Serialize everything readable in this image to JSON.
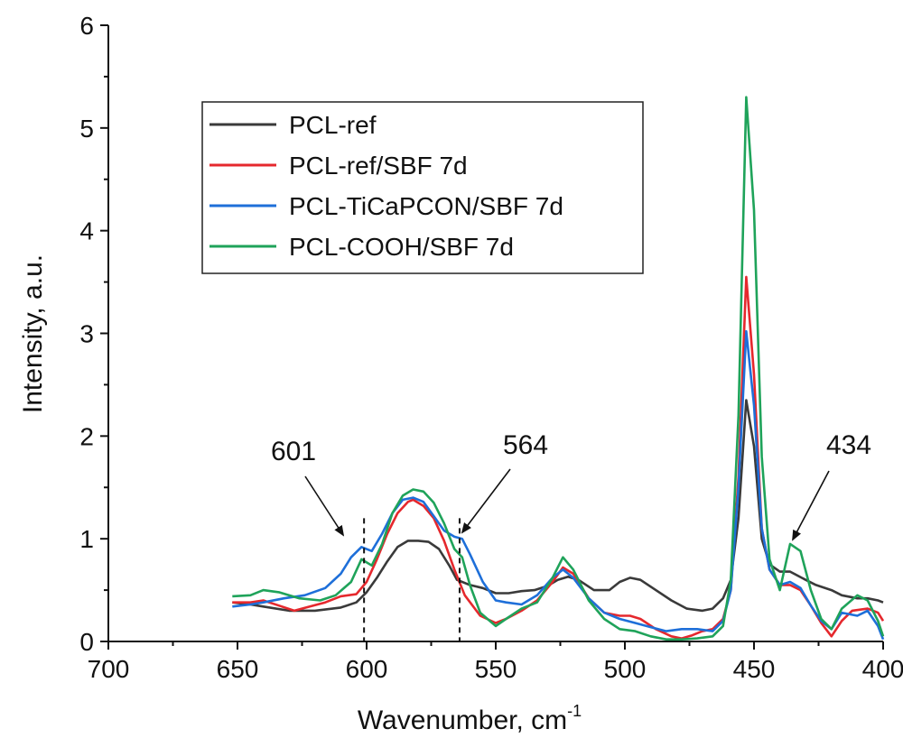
{
  "chart_data": {
    "type": "line",
    "xlabel": "Wavenumber, cm",
    "xlabel_superscript": "-1",
    "ylabel": "Intensity, a.u.",
    "xlim": [
      700,
      400
    ],
    "ylim": [
      0,
      6
    ],
    "x_reversed": true,
    "x_ticks": [
      700,
      650,
      600,
      550,
      500,
      450,
      400
    ],
    "y_ticks": [
      0,
      1,
      2,
      3,
      4,
      5,
      6
    ],
    "grid": false,
    "legend_position": "top-left",
    "series": [
      {
        "name": "PCL-ref",
        "color": "#3a3a3a",
        "points": [
          [
            652,
            0.38
          ],
          [
            645,
            0.36
          ],
          [
            640,
            0.34
          ],
          [
            630,
            0.3
          ],
          [
            620,
            0.3
          ],
          [
            610,
            0.33
          ],
          [
            604,
            0.38
          ],
          [
            600,
            0.48
          ],
          [
            596,
            0.62
          ],
          [
            592,
            0.78
          ],
          [
            588,
            0.92
          ],
          [
            584,
            0.98
          ],
          [
            580,
            0.98
          ],
          [
            576,
            0.97
          ],
          [
            572,
            0.9
          ],
          [
            568,
            0.74
          ],
          [
            565,
            0.6
          ],
          [
            560,
            0.55
          ],
          [
            555,
            0.52
          ],
          [
            550,
            0.47
          ],
          [
            545,
            0.47
          ],
          [
            540,
            0.49
          ],
          [
            535,
            0.5
          ],
          [
            530,
            0.54
          ],
          [
            526,
            0.6
          ],
          [
            522,
            0.63
          ],
          [
            518,
            0.6
          ],
          [
            512,
            0.5
          ],
          [
            506,
            0.5
          ],
          [
            502,
            0.58
          ],
          [
            498,
            0.62
          ],
          [
            494,
            0.6
          ],
          [
            488,
            0.5
          ],
          [
            482,
            0.4
          ],
          [
            476,
            0.32
          ],
          [
            470,
            0.3
          ],
          [
            466,
            0.32
          ],
          [
            462,
            0.42
          ],
          [
            459,
            0.6
          ],
          [
            456,
            1.2
          ],
          [
            453,
            2.35
          ],
          [
            450,
            1.9
          ],
          [
            447,
            1.0
          ],
          [
            444,
            0.75
          ],
          [
            440,
            0.68
          ],
          [
            436,
            0.68
          ],
          [
            430,
            0.6
          ],
          [
            426,
            0.55
          ],
          [
            420,
            0.5
          ],
          [
            416,
            0.45
          ],
          [
            410,
            0.42
          ],
          [
            406,
            0.42
          ],
          [
            402,
            0.4
          ],
          [
            400,
            0.38
          ]
        ]
      },
      {
        "name": "PCL-ref/SBF 7d",
        "color": "#e5282d",
        "points": [
          [
            652,
            0.38
          ],
          [
            645,
            0.38
          ],
          [
            640,
            0.4
          ],
          [
            634,
            0.35
          ],
          [
            628,
            0.3
          ],
          [
            622,
            0.34
          ],
          [
            616,
            0.38
          ],
          [
            610,
            0.44
          ],
          [
            604,
            0.46
          ],
          [
            600,
            0.58
          ],
          [
            596,
            0.8
          ],
          [
            592,
            1.05
          ],
          [
            588,
            1.25
          ],
          [
            584,
            1.36
          ],
          [
            582,
            1.38
          ],
          [
            578,
            1.32
          ],
          [
            574,
            1.2
          ],
          [
            570,
            0.98
          ],
          [
            566,
            0.7
          ],
          [
            562,
            0.45
          ],
          [
            556,
            0.25
          ],
          [
            550,
            0.18
          ],
          [
            546,
            0.22
          ],
          [
            540,
            0.3
          ],
          [
            534,
            0.4
          ],
          [
            528,
            0.58
          ],
          [
            524,
            0.72
          ],
          [
            520,
            0.66
          ],
          [
            514,
            0.42
          ],
          [
            508,
            0.28
          ],
          [
            502,
            0.25
          ],
          [
            498,
            0.25
          ],
          [
            494,
            0.22
          ],
          [
            488,
            0.12
          ],
          [
            482,
            0.05
          ],
          [
            478,
            0.03
          ],
          [
            474,
            0.06
          ],
          [
            470,
            0.1
          ],
          [
            466,
            0.12
          ],
          [
            462,
            0.22
          ],
          [
            459,
            0.5
          ],
          [
            456,
            1.6
          ],
          [
            453,
            3.55
          ],
          [
            450,
            2.6
          ],
          [
            447,
            1.1
          ],
          [
            444,
            0.7
          ],
          [
            440,
            0.55
          ],
          [
            436,
            0.55
          ],
          [
            432,
            0.5
          ],
          [
            428,
            0.35
          ],
          [
            424,
            0.18
          ],
          [
            420,
            0.05
          ],
          [
            416,
            0.2
          ],
          [
            412,
            0.3
          ],
          [
            406,
            0.32
          ],
          [
            402,
            0.28
          ],
          [
            400,
            0.2
          ]
        ]
      },
      {
        "name": "PCL-TiCaPCON/SBF 7d",
        "color": "#1e6fd9",
        "points": [
          [
            652,
            0.34
          ],
          [
            645,
            0.36
          ],
          [
            640,
            0.38
          ],
          [
            632,
            0.42
          ],
          [
            624,
            0.45
          ],
          [
            616,
            0.52
          ],
          [
            610,
            0.66
          ],
          [
            606,
            0.82
          ],
          [
            602,
            0.92
          ],
          [
            598,
            0.88
          ],
          [
            594,
            1.05
          ],
          [
            590,
            1.25
          ],
          [
            586,
            1.38
          ],
          [
            582,
            1.4
          ],
          [
            578,
            1.36
          ],
          [
            574,
            1.22
          ],
          [
            570,
            1.08
          ],
          [
            566,
            1.02
          ],
          [
            563,
            1.0
          ],
          [
            560,
            0.85
          ],
          [
            555,
            0.58
          ],
          [
            550,
            0.4
          ],
          [
            546,
            0.38
          ],
          [
            540,
            0.36
          ],
          [
            534,
            0.45
          ],
          [
            528,
            0.62
          ],
          [
            524,
            0.7
          ],
          [
            520,
            0.62
          ],
          [
            514,
            0.42
          ],
          [
            508,
            0.28
          ],
          [
            502,
            0.22
          ],
          [
            496,
            0.18
          ],
          [
            490,
            0.14
          ],
          [
            484,
            0.1
          ],
          [
            478,
            0.12
          ],
          [
            472,
            0.12
          ],
          [
            466,
            0.1
          ],
          [
            462,
            0.2
          ],
          [
            459,
            0.5
          ],
          [
            456,
            1.5
          ],
          [
            453,
            3.02
          ],
          [
            450,
            2.3
          ],
          [
            447,
            1.1
          ],
          [
            444,
            0.7
          ],
          [
            440,
            0.55
          ],
          [
            436,
            0.58
          ],
          [
            432,
            0.52
          ],
          [
            428,
            0.35
          ],
          [
            424,
            0.2
          ],
          [
            420,
            0.12
          ],
          [
            416,
            0.28
          ],
          [
            410,
            0.25
          ],
          [
            406,
            0.3
          ],
          [
            402,
            0.15
          ],
          [
            400,
            0.02
          ]
        ]
      },
      {
        "name": "PCL-COOH/SBF 7d",
        "color": "#1fa35a",
        "points": [
          [
            652,
            0.44
          ],
          [
            645,
            0.45
          ],
          [
            640,
            0.5
          ],
          [
            634,
            0.48
          ],
          [
            626,
            0.42
          ],
          [
            618,
            0.4
          ],
          [
            612,
            0.45
          ],
          [
            606,
            0.58
          ],
          [
            602,
            0.8
          ],
          [
            598,
            0.74
          ],
          [
            594,
            0.95
          ],
          [
            590,
            1.25
          ],
          [
            586,
            1.42
          ],
          [
            582,
            1.48
          ],
          [
            578,
            1.46
          ],
          [
            574,
            1.35
          ],
          [
            570,
            1.15
          ],
          [
            566,
            0.9
          ],
          [
            563,
            0.82
          ],
          [
            560,
            0.55
          ],
          [
            556,
            0.28
          ],
          [
            550,
            0.15
          ],
          [
            546,
            0.22
          ],
          [
            540,
            0.32
          ],
          [
            534,
            0.38
          ],
          [
            528,
            0.62
          ],
          [
            524,
            0.82
          ],
          [
            520,
            0.7
          ],
          [
            514,
            0.4
          ],
          [
            508,
            0.22
          ],
          [
            502,
            0.12
          ],
          [
            496,
            0.1
          ],
          [
            490,
            0.05
          ],
          [
            484,
            0.02
          ],
          [
            478,
            0.02
          ],
          [
            472,
            0.03
          ],
          [
            466,
            0.05
          ],
          [
            462,
            0.15
          ],
          [
            459,
            0.6
          ],
          [
            456,
            2.2
          ],
          [
            453,
            5.3
          ],
          [
            450,
            4.2
          ],
          [
            447,
            1.8
          ],
          [
            444,
            0.8
          ],
          [
            440,
            0.5
          ],
          [
            436,
            0.95
          ],
          [
            432,
            0.88
          ],
          [
            428,
            0.5
          ],
          [
            424,
            0.22
          ],
          [
            420,
            0.12
          ],
          [
            416,
            0.32
          ],
          [
            410,
            0.45
          ],
          [
            406,
            0.4
          ],
          [
            402,
            0.2
          ],
          [
            400,
            0.05
          ]
        ]
      }
    ],
    "annotations": [
      {
        "label": "601",
        "x": 601
      },
      {
        "label": "564",
        "x": 564
      },
      {
        "label": "434",
        "x": 434
      }
    ]
  }
}
